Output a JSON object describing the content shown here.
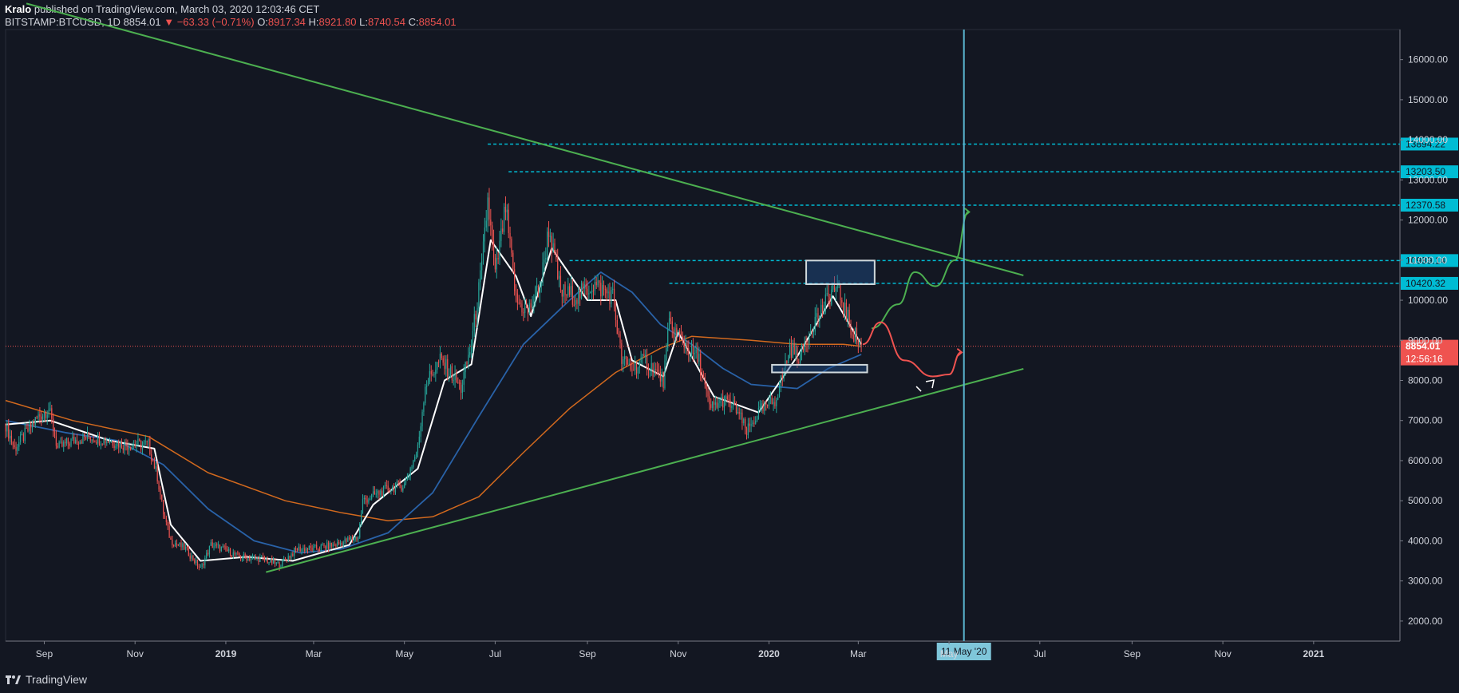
{
  "header": {
    "author": "Kralo",
    "published_text": "published on TradingView.com, March 03, 2020 12:03:46 CET",
    "symbol": "BITSTAMP:BTCUSD, 1D",
    "last": "8854.01",
    "change_arrow": "▼",
    "change": "−63.33 (−0.71%)",
    "o_label": "O:",
    "o": "8917.34",
    "h_label": "H:",
    "h": "8921.80",
    "l_label": "L:",
    "l": "8740.54",
    "c_label": "C:",
    "c": "8854.01"
  },
  "footer": {
    "brand": "TradingView"
  },
  "colors": {
    "background": "#131722",
    "up_candle": "#26a69a",
    "down_candle": "#ef5350",
    "ma_fast": "#ffffff",
    "ma_mid": "#2962a8",
    "ma_slow": "#d2691e",
    "trendline": "#4caf50",
    "level_line": "#00bcd4",
    "vertical_line": "#5ab4cf",
    "price_label_bg": "#ef5350"
  },
  "chart_data": {
    "type": "candlestick",
    "y_axis": {
      "ticks": [
        2000,
        3000,
        4000,
        5000,
        6000,
        7000,
        8000,
        9000,
        10000,
        11000,
        12000,
        13000,
        14000,
        15000,
        16000
      ],
      "tick_labels": [
        "2000.00",
        "3000.00",
        "4000.00",
        "5000.00",
        "6000.00",
        "7000.00",
        "8000.00",
        "9000.00",
        "10000.00",
        "11000.00",
        "12000.00",
        "13000.00",
        "14000.00",
        "15000.00",
        "16000.00"
      ],
      "range": [
        1500,
        16750
      ]
    },
    "x_axis": {
      "tick_labels": [
        "Sep",
        "Nov",
        "2019",
        "Mar",
        "May",
        "Jul",
        "Sep",
        "Nov",
        "2020",
        "Mar",
        "May",
        "Jul",
        "Sep",
        "Nov",
        "2021"
      ],
      "bold": [
        false,
        false,
        true,
        false,
        false,
        false,
        false,
        false,
        true,
        false,
        false,
        false,
        false,
        false,
        true
      ],
      "range_start": "2018-08-06",
      "range_end": "2021-02-28",
      "ticks": [
        "2018-09-01",
        "2018-11-01",
        "2019-01-01",
        "2019-03-01",
        "2019-05-01",
        "2019-07-01",
        "2019-09-01",
        "2019-11-01",
        "2020-01-01",
        "2020-03-01",
        "2020-05-01",
        "2020-07-01",
        "2020-09-01",
        "2020-11-01",
        "2021-01-01"
      ]
    },
    "price_levels": [
      {
        "value": 13894.22,
        "label": "13894.22",
        "start": "2019-06-26"
      },
      {
        "value": 13203.5,
        "label": "13203.50",
        "start": "2019-07-10"
      },
      {
        "value": 12370.58,
        "label": "12370.58",
        "start": "2019-08-06"
      },
      {
        "value": 10989.14,
        "label": "10989.14",
        "start": "2019-08-20"
      },
      {
        "value": 10420.32,
        "label": "10420.32",
        "start": "2019-10-26"
      }
    ],
    "current_price": {
      "value": 8854.01,
      "label": "8854.01",
      "countdown": "12:56:16",
      "hidden_label": "9000.00"
    },
    "vertical_marker": {
      "date": "2020-05-11",
      "label": "11 May '20"
    },
    "trendlines": [
      {
        "points": [
          [
            "2018-08-20",
            17400
          ],
          [
            "2020-06-20",
            10620
          ]
        ]
      },
      {
        "points": [
          [
            "2019-01-28",
            3220
          ],
          [
            "2020-06-20",
            8290
          ]
        ]
      }
    ],
    "zones": [
      {
        "start": "2020-01-26",
        "end": "2020-03-12",
        "top": 10990,
        "bottom": 10400
      },
      {
        "start": "2020-01-03",
        "end": "2020-03-07",
        "top": 8390,
        "bottom": 8200
      }
    ],
    "scenario_paths": [
      {
        "kind": "bullish",
        "points": [
          [
            "2020-03-10",
            9300
          ],
          [
            "2020-03-28",
            9900
          ],
          [
            "2020-04-08",
            10700
          ],
          [
            "2020-04-22",
            10350
          ],
          [
            "2020-05-05",
            11000
          ],
          [
            "2020-05-14",
            12200
          ]
        ]
      },
      {
        "kind": "bearish",
        "points": [
          [
            "2020-03-04",
            8900
          ],
          [
            "2020-03-16",
            9450
          ],
          [
            "2020-04-01",
            8500
          ],
          [
            "2020-04-20",
            8100
          ],
          [
            "2020-05-01",
            8150
          ],
          [
            "2020-05-09",
            8700
          ]
        ]
      }
    ],
    "close_series": [
      [
        "2018-08-06",
        6900
      ],
      [
        "2018-08-12",
        6300
      ],
      [
        "2018-08-20",
        6700
      ],
      [
        "2018-08-28",
        7100
      ],
      [
        "2018-09-04",
        7300
      ],
      [
        "2018-09-10",
        6300
      ],
      [
        "2018-09-20",
        6500
      ],
      [
        "2018-10-01",
        6600
      ],
      [
        "2018-10-15",
        6500
      ],
      [
        "2018-10-25",
        6400
      ],
      [
        "2018-11-10",
        6400
      ],
      [
        "2018-11-16",
        5600
      ],
      [
        "2018-11-20",
        4700
      ],
      [
        "2018-11-25",
        4000
      ],
      [
        "2018-12-05",
        3800
      ],
      [
        "2018-12-15",
        3300
      ],
      [
        "2018-12-22",
        3900
      ],
      [
        "2018-12-30",
        3800
      ],
      [
        "2019-01-10",
        3600
      ],
      [
        "2019-01-25",
        3550
      ],
      [
        "2019-02-06",
        3400
      ],
      [
        "2019-02-18",
        3800
      ],
      [
        "2019-03-01",
        3800
      ],
      [
        "2019-03-15",
        3900
      ],
      [
        "2019-03-31",
        4100
      ],
      [
        "2019-04-03",
        5000
      ],
      [
        "2019-04-20",
        5300
      ],
      [
        "2019-05-01",
        5400
      ],
      [
        "2019-05-10",
        6300
      ],
      [
        "2019-05-15",
        7900
      ],
      [
        "2019-05-25",
        8500
      ],
      [
        "2019-06-01",
        8200
      ],
      [
        "2019-06-08",
        7800
      ],
      [
        "2019-06-15",
        8900
      ],
      [
        "2019-06-22",
        10800
      ],
      [
        "2019-06-26",
        12500
      ],
      [
        "2019-07-01",
        10600
      ],
      [
        "2019-07-08",
        12300
      ],
      [
        "2019-07-15",
        10000
      ],
      [
        "2019-07-23",
        9700
      ],
      [
        "2019-08-01",
        10500
      ],
      [
        "2019-08-06",
        11800
      ],
      [
        "2019-08-14",
        10200
      ],
      [
        "2019-08-25",
        10100
      ],
      [
        "2019-09-05",
        10400
      ],
      [
        "2019-09-18",
        10100
      ],
      [
        "2019-09-24",
        8500
      ],
      [
        "2019-10-01",
        8300
      ],
      [
        "2019-10-10",
        8500
      ],
      [
        "2019-10-22",
        8000
      ],
      [
        "2019-10-26",
        9400
      ],
      [
        "2019-11-08",
        8800
      ],
      [
        "2019-11-15",
        8500
      ],
      [
        "2019-11-22",
        7300
      ],
      [
        "2019-12-01",
        7500
      ],
      [
        "2019-12-10",
        7300
      ],
      [
        "2019-12-17",
        6700
      ],
      [
        "2019-12-25",
        7200
      ],
      [
        "2020-01-05",
        7500
      ],
      [
        "2020-01-10",
        8100
      ],
      [
        "2020-01-15",
        8800
      ],
      [
        "2020-01-22",
        8600
      ],
      [
        "2020-01-30",
        9400
      ],
      [
        "2020-02-08",
        9900
      ],
      [
        "2020-02-13",
        10300
      ],
      [
        "2020-02-18",
        10100
      ],
      [
        "2020-02-25",
        9300
      ],
      [
        "2020-03-03",
        8854
      ]
    ],
    "ma_fast_series": [
      [
        "2018-08-06",
        6900
      ],
      [
        "2018-09-05",
        7000
      ],
      [
        "2018-10-15",
        6500
      ],
      [
        "2018-11-14",
        6300
      ],
      [
        "2018-11-25",
        4400
      ],
      [
        "2018-12-15",
        3500
      ],
      [
        "2019-01-15",
        3600
      ],
      [
        "2019-02-15",
        3500
      ],
      [
        "2019-03-25",
        3900
      ],
      [
        "2019-04-10",
        4900
      ],
      [
        "2019-05-10",
        5800
      ],
      [
        "2019-05-28",
        8000
      ],
      [
        "2019-06-15",
        8400
      ],
      [
        "2019-06-28",
        11500
      ],
      [
        "2019-07-15",
        10600
      ],
      [
        "2019-07-25",
        9600
      ],
      [
        "2019-08-08",
        11300
      ],
      [
        "2019-09-01",
        10000
      ],
      [
        "2019-09-20",
        10000
      ],
      [
        "2019-10-01",
        8500
      ],
      [
        "2019-10-22",
        8100
      ],
      [
        "2019-11-01",
        9200
      ],
      [
        "2019-11-25",
        7600
      ],
      [
        "2019-12-25",
        7200
      ],
      [
        "2020-01-20",
        8600
      ],
      [
        "2020-02-13",
        10100
      ],
      [
        "2020-03-03",
        8900
      ]
    ],
    "ma_mid_series": [
      [
        "2018-08-06",
        7000
      ],
      [
        "2018-09-15",
        6700
      ],
      [
        "2018-10-20",
        6500
      ],
      [
        "2018-11-20",
        5900
      ],
      [
        "2018-12-20",
        4800
      ],
      [
        "2019-01-20",
        4000
      ],
      [
        "2019-02-20",
        3700
      ],
      [
        "2019-03-20",
        3800
      ],
      [
        "2019-04-20",
        4200
      ],
      [
        "2019-05-20",
        5200
      ],
      [
        "2019-06-20",
        7100
      ],
      [
        "2019-07-20",
        8900
      ],
      [
        "2019-08-20",
        10000
      ],
      [
        "2019-09-10",
        10700
      ],
      [
        "2019-10-01",
        10200
      ],
      [
        "2019-10-20",
        9400
      ],
      [
        "2019-11-10",
        8900
      ],
      [
        "2019-12-01",
        8300
      ],
      [
        "2019-12-20",
        7900
      ],
      [
        "2020-01-20",
        7800
      ],
      [
        "2020-02-10",
        8300
      ],
      [
        "2020-03-03",
        8650
      ]
    ],
    "ma_slow_series": [
      [
        "2018-08-06",
        7500
      ],
      [
        "2018-09-20",
        7000
      ],
      [
        "2018-11-10",
        6600
      ],
      [
        "2018-12-20",
        5700
      ],
      [
        "2019-02-10",
        5000
      ],
      [
        "2019-03-20",
        4700
      ],
      [
        "2019-04-20",
        4500
      ],
      [
        "2019-05-20",
        4600
      ],
      [
        "2019-06-20",
        5100
      ],
      [
        "2019-07-20",
        6200
      ],
      [
        "2019-08-20",
        7300
      ],
      [
        "2019-09-20",
        8200
      ],
      [
        "2019-10-20",
        8800
      ],
      [
        "2019-11-10",
        9100
      ],
      [
        "2019-12-20",
        9000
      ],
      [
        "2020-01-20",
        8900
      ],
      [
        "2020-02-20",
        8900
      ],
      [
        "2020-03-03",
        8850
      ]
    ]
  }
}
